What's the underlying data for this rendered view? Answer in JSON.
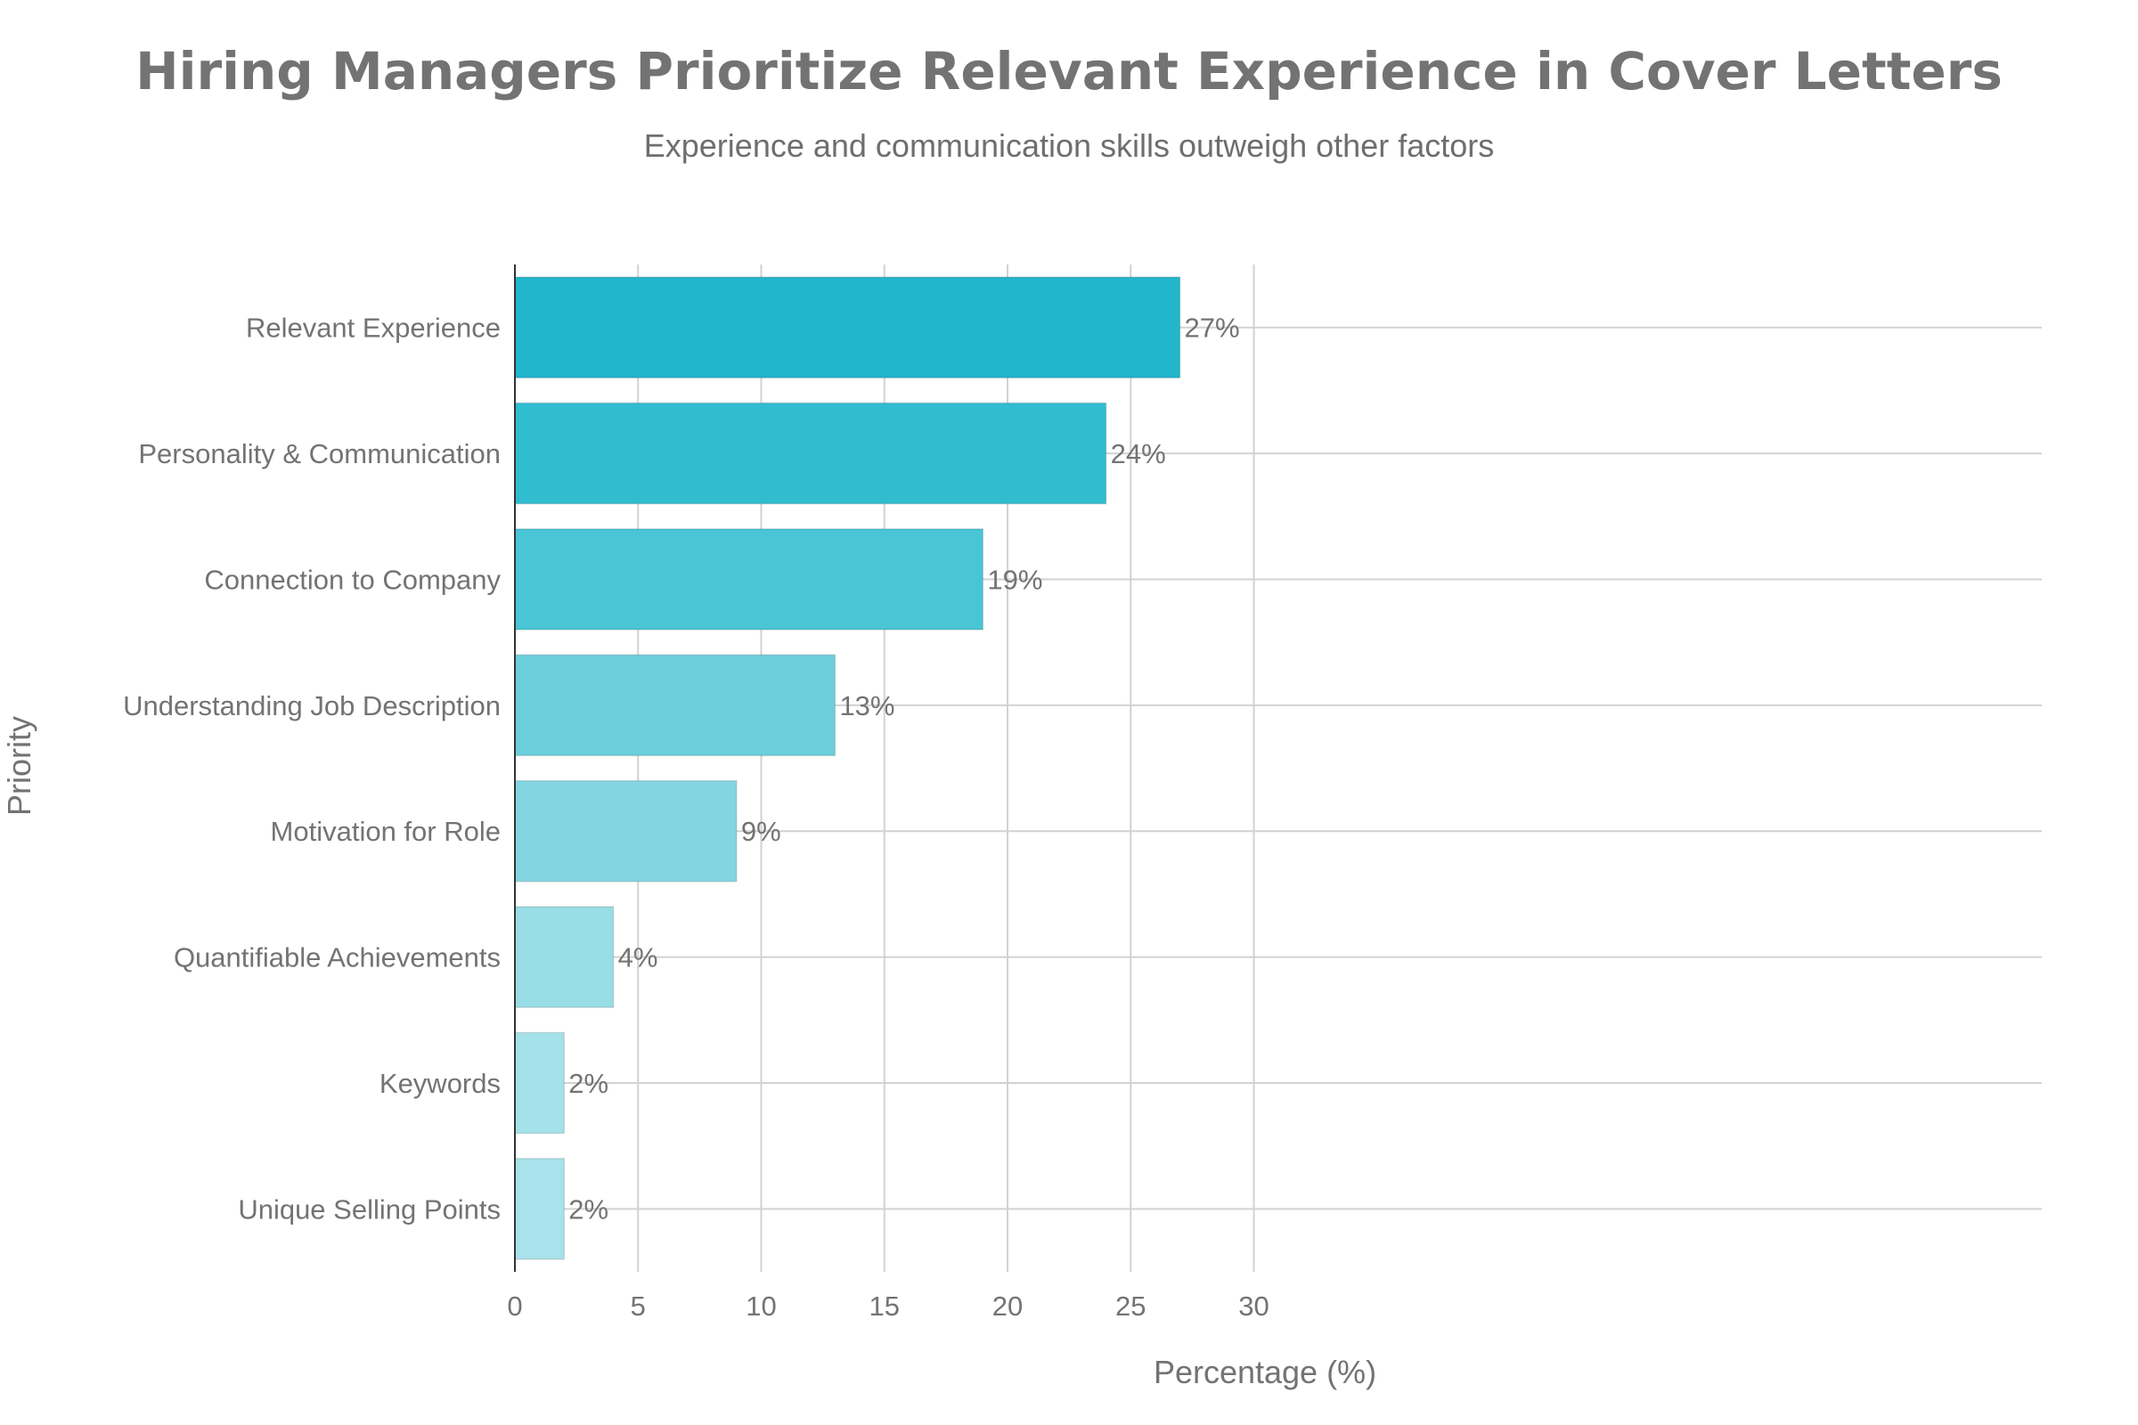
{
  "chart_data": {
    "type": "bar",
    "orientation": "horizontal",
    "title": "Hiring Managers Prioritize Relevant Experience in Cover Letters",
    "subtitle": "Experience and communication skills outweigh other factors",
    "xlabel": "Percentage (%)",
    "ylabel": "Priority",
    "xlim": [
      0,
      31
    ],
    "xticks": [
      0,
      5,
      10,
      15,
      20,
      25,
      30
    ],
    "grid": true,
    "categories": [
      "Relevant Experience",
      "Personality & Communication",
      "Connection to Company",
      "Understanding Job Description",
      "Motivation for Role",
      "Quantifiable Achievements",
      "Keywords",
      "Unique Selling Points"
    ],
    "values": [
      27,
      24,
      19,
      13,
      9,
      4,
      2,
      2
    ],
    "data_labels": [
      "27%",
      "24%",
      "19%",
      "13%",
      "9%",
      "4%",
      "2%",
      "2%"
    ],
    "colors": [
      "#21b6cc",
      "#30bdd0",
      "#4ac5d5",
      "#6ccfdc",
      "#82d6e1",
      "#99dde6",
      "#a5e1e9",
      "#a8e2ea"
    ]
  }
}
